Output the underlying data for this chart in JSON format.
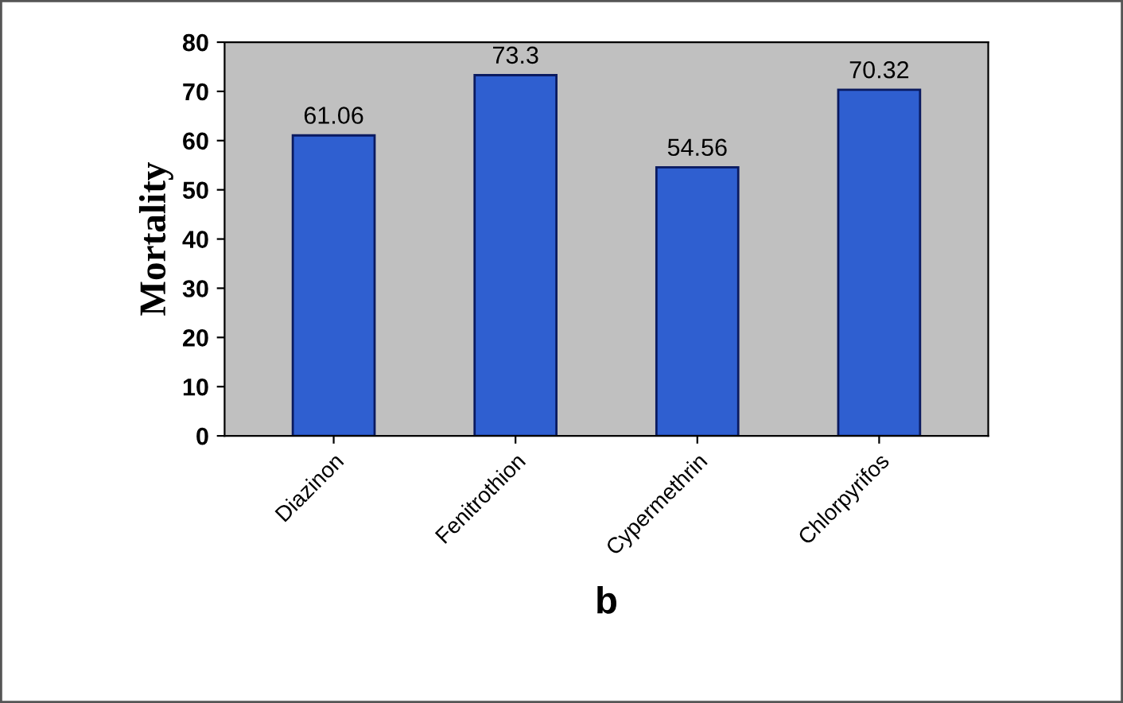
{
  "chart_data": {
    "type": "bar",
    "ylabel": "Mortality",
    "xlabel": "b",
    "categories": [
      "Diazinon",
      "Fenitrothion",
      "Cypermethrin",
      "Chlorpyrifos"
    ],
    "values": [
      61.06,
      73.3,
      54.56,
      70.32
    ],
    "color": "#2f5fd0",
    "ylim": [
      0,
      80
    ],
    "yticks": [
      0,
      10,
      20,
      30,
      40,
      50,
      60,
      70,
      80
    ],
    "data_labels": true,
    "grid": false
  }
}
